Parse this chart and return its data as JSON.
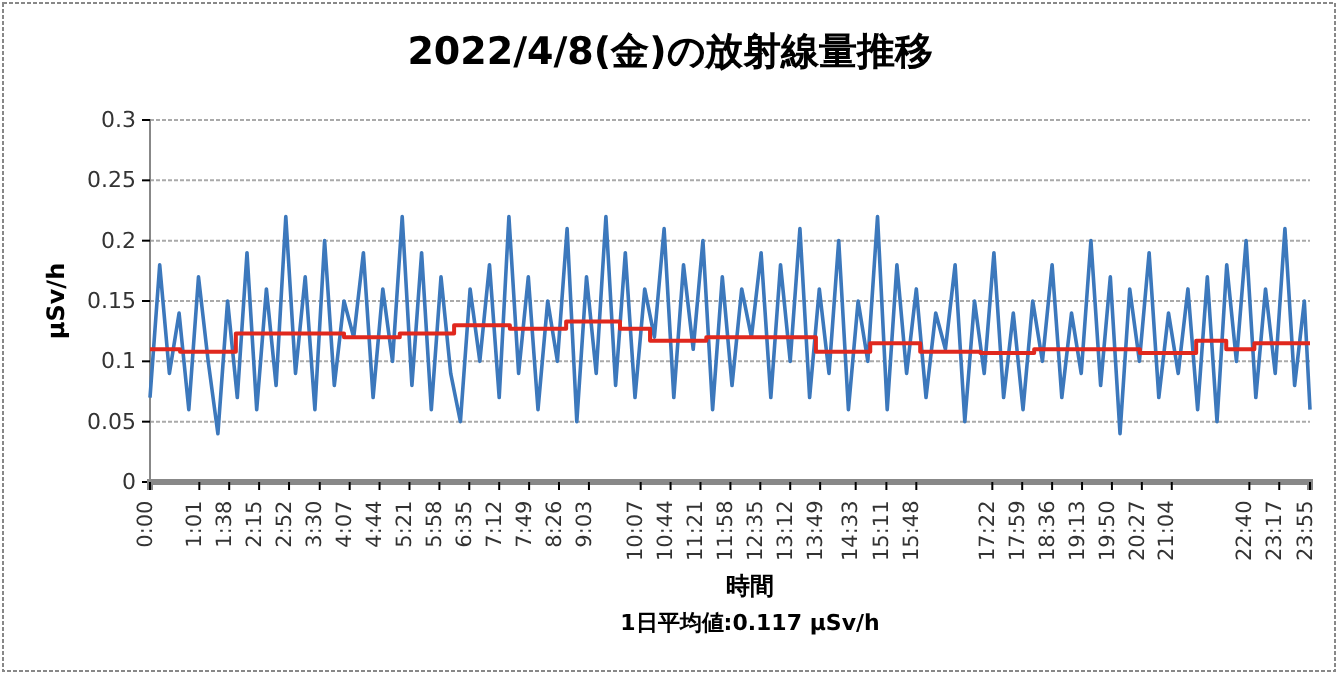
{
  "chart_data": {
    "type": "line",
    "title": "2022/4/8(金)の放射線量推移",
    "xlabel": "時間",
    "ylabel": "μSv/h",
    "annotations": [
      "1日平均値:0.117 μSv/h"
    ],
    "xlim": [
      0,
      23.917
    ],
    "ylim": [
      0,
      0.3
    ],
    "yticks": [
      0,
      0.05,
      0.1,
      0.15,
      0.2,
      0.25,
      0.3
    ],
    "xticks": [
      {
        "value": 0,
        "label": "0:00"
      },
      {
        "value": 1.017,
        "label": "1:01"
      },
      {
        "value": 1.633,
        "label": "1:38"
      },
      {
        "value": 2.25,
        "label": "2:15"
      },
      {
        "value": 2.867,
        "label": "2:52"
      },
      {
        "value": 3.5,
        "label": "3:30"
      },
      {
        "value": 4.117,
        "label": "4:07"
      },
      {
        "value": 4.733,
        "label": "4:44"
      },
      {
        "value": 5.35,
        "label": "5:21"
      },
      {
        "value": 5.967,
        "label": "5:58"
      },
      {
        "value": 6.583,
        "label": "6:35"
      },
      {
        "value": 7.2,
        "label": "7:12"
      },
      {
        "value": 7.817,
        "label": "7:49"
      },
      {
        "value": 8.433,
        "label": "8:26"
      },
      {
        "value": 9.05,
        "label": "9:03"
      },
      {
        "value": 10.117,
        "label": "10:07"
      },
      {
        "value": 10.733,
        "label": "10:44"
      },
      {
        "value": 11.35,
        "label": "11:21"
      },
      {
        "value": 11.967,
        "label": "11:58"
      },
      {
        "value": 12.583,
        "label": "12:35"
      },
      {
        "value": 13.2,
        "label": "13:12"
      },
      {
        "value": 13.817,
        "label": "13:49"
      },
      {
        "value": 14.55,
        "label": "14:33"
      },
      {
        "value": 15.183,
        "label": "15:11"
      },
      {
        "value": 15.8,
        "label": "15:48"
      },
      {
        "value": 17.367,
        "label": "17:22"
      },
      {
        "value": 17.983,
        "label": "17:59"
      },
      {
        "value": 18.6,
        "label": "18:36"
      },
      {
        "value": 19.217,
        "label": "19:13"
      },
      {
        "value": 19.833,
        "label": "19:50"
      },
      {
        "value": 20.45,
        "label": "20:27"
      },
      {
        "value": 21.067,
        "label": "21:04"
      },
      {
        "value": 22.667,
        "label": "22:40"
      },
      {
        "value": 23.283,
        "label": "23:17"
      },
      {
        "value": 23.917,
        "label": "23:55"
      }
    ],
    "grid": "y",
    "marker": "none",
    "line_style": "solid",
    "series": [
      {
        "color": "#3c78bc",
        "x": [
          0,
          0.2,
          0.4,
          0.6,
          0.8,
          1,
          1.2,
          1.4,
          1.6,
          1.8,
          2,
          2.2,
          2.4,
          2.6,
          2.8,
          3,
          3.2,
          3.4,
          3.6,
          3.8,
          4,
          4.2,
          4.4,
          4.6,
          4.8,
          5,
          5.2,
          5.4,
          5.6,
          5.8,
          6,
          6.2,
          6.4,
          6.6,
          6.8,
          7,
          7.2,
          7.4,
          7.6,
          7.8,
          8,
          8.2,
          8.4,
          8.6,
          8.8,
          9,
          9.2,
          9.4,
          9.6,
          9.8,
          10,
          10.2,
          10.4,
          10.6,
          10.8,
          11,
          11.2,
          11.4,
          11.6,
          11.8,
          12,
          12.2,
          12.4,
          12.6,
          12.8,
          13,
          13.2,
          13.4,
          13.6,
          13.8,
          14,
          14.2,
          14.4,
          14.6,
          14.8,
          15,
          15.2,
          15.4,
          15.6,
          15.8,
          16,
          16.2,
          16.4,
          16.6,
          16.8,
          17,
          17.2,
          17.4,
          17.6,
          17.8,
          18,
          18.2,
          18.4,
          18.6,
          18.8,
          19,
          19.2,
          19.4,
          19.6,
          19.8,
          20,
          20.2,
          20.4,
          20.6,
          20.8,
          21,
          21.2,
          21.4,
          21.6,
          21.8,
          22,
          22.2,
          22.4,
          22.6,
          22.8,
          23,
          23.2,
          23.4,
          23.6,
          23.8,
          23.917
        ],
        "values": [
          0.07,
          0.18,
          0.09,
          0.14,
          0.06,
          0.17,
          0.1,
          0.04,
          0.15,
          0.07,
          0.19,
          0.06,
          0.16,
          0.08,
          0.22,
          0.09,
          0.17,
          0.06,
          0.2,
          0.08,
          0.15,
          0.12,
          0.19,
          0.07,
          0.16,
          0.1,
          0.22,
          0.08,
          0.19,
          0.06,
          0.17,
          0.09,
          0.05,
          0.16,
          0.1,
          0.18,
          0.07,
          0.22,
          0.09,
          0.17,
          0.06,
          0.15,
          0.1,
          0.21,
          0.05,
          0.17,
          0.09,
          0.22,
          0.08,
          0.19,
          0.07,
          0.16,
          0.12,
          0.21,
          0.07,
          0.18,
          0.11,
          0.2,
          0.06,
          0.17,
          0.08,
          0.16,
          0.12,
          0.19,
          0.07,
          0.18,
          0.1,
          0.21,
          0.07,
          0.16,
          0.09,
          0.2,
          0.06,
          0.15,
          0.1,
          0.22,
          0.06,
          0.18,
          0.09,
          0.16,
          0.07,
          0.14,
          0.11,
          0.18,
          0.05,
          0.15,
          0.09,
          0.19,
          0.07,
          0.14,
          0.06,
          0.15,
          0.1,
          0.18,
          0.07,
          0.14,
          0.09,
          0.2,
          0.08,
          0.17,
          0.04,
          0.16,
          0.1,
          0.19,
          0.07,
          0.14,
          0.09,
          0.16,
          0.06,
          0.17,
          0.05,
          0.18,
          0.1,
          0.2,
          0.07,
          0.16,
          0.09,
          0.21,
          0.08,
          0.15,
          0.06
        ]
      },
      {
        "type": "step",
        "color": "#e0281e",
        "x": [
          0,
          0.62,
          1.77,
          4.0,
          5.15,
          6.27,
          7.42,
          8.58,
          9.69,
          10.31,
          11.47,
          13.73,
          14.85,
          15.88,
          17.12,
          18.23,
          20.41,
          21.57,
          22.19,
          22.77,
          23.917
        ],
        "values": [
          0.11,
          0.108,
          0.123,
          0.12,
          0.123,
          0.13,
          0.127,
          0.133,
          0.127,
          0.117,
          0.12,
          0.108,
          0.115,
          0.108,
          0.107,
          0.11,
          0.107,
          0.117,
          0.11,
          0.115,
          0.115
        ]
      }
    ]
  }
}
